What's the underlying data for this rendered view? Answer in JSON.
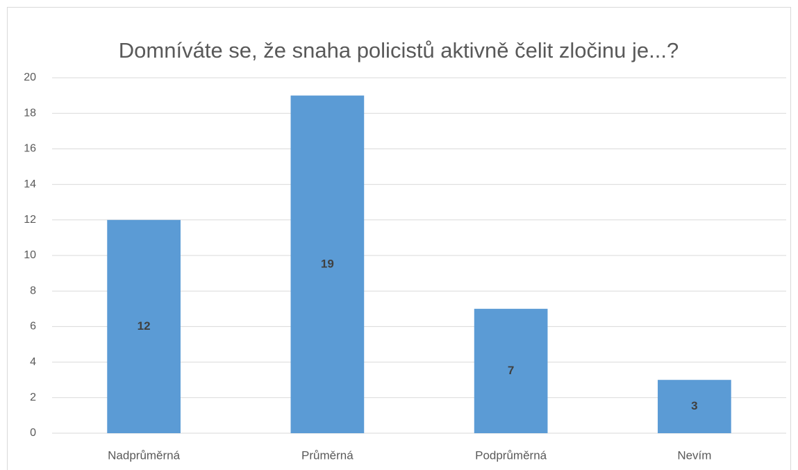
{
  "chart_data": {
    "type": "bar",
    "title": "Domníváte se, že snaha policistů aktivně čelit zločinu je...?",
    "categories": [
      "Nadprůměrná",
      "Průměrná",
      "Podprůměrná",
      "Nevím"
    ],
    "values": [
      12,
      19,
      7,
      3
    ],
    "color": "#5b9bd5",
    "ylim": [
      0,
      20
    ],
    "yticks": [
      0,
      2,
      4,
      6,
      8,
      10,
      12,
      14,
      16,
      18,
      20
    ],
    "grid": true
  }
}
